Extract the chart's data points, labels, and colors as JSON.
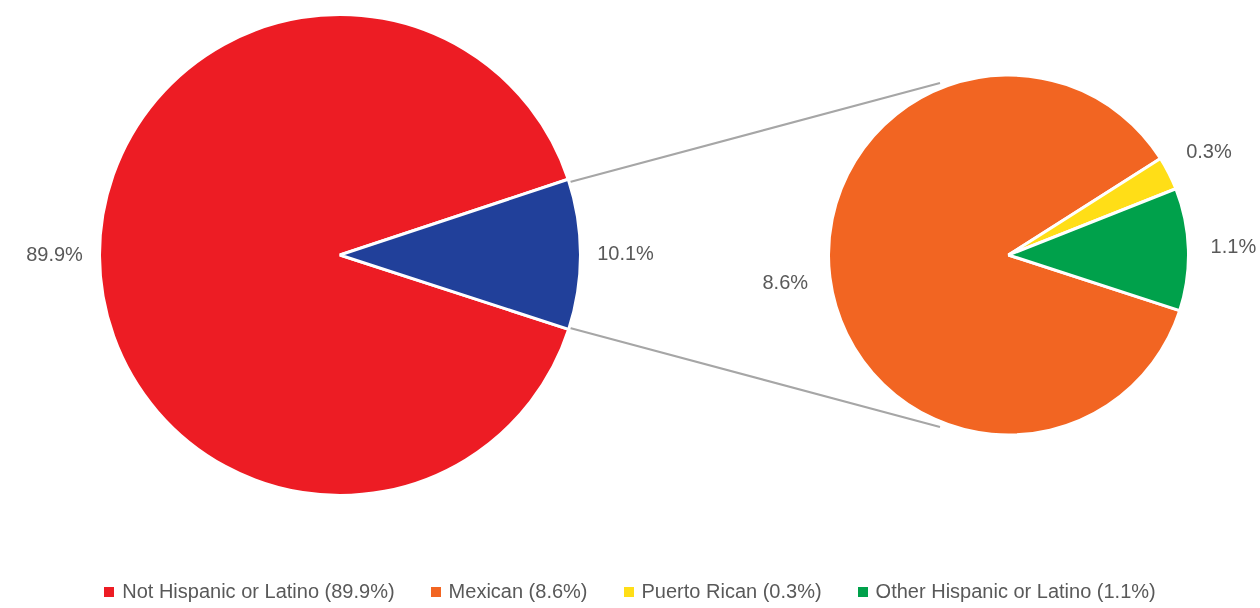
{
  "chart_data": [
    {
      "type": "pie",
      "categories": [
        "Not Hispanic or Latino (89.9%)",
        null
      ],
      "values": [
        89.9,
        10.1
      ],
      "colors": [
        "#ed1c24",
        "#21409a"
      ],
      "value_labels": [
        "89.9%",
        "10.1%"
      ],
      "legend": "bottom"
    },
    {
      "type": "pie",
      "categories": [
        "Mexican (8.6%)",
        "Puerto Rican (0.3%)",
        "Other Hispanic or Latino (1.1%)"
      ],
      "values": [
        8.6,
        0.3,
        1.1
      ],
      "colors": [
        "#f26522",
        "#ffde17",
        "#00a14b"
      ],
      "value_labels": [
        "8.6%",
        "0.3%",
        "1.1%"
      ],
      "legend": "bottom"
    }
  ]
}
